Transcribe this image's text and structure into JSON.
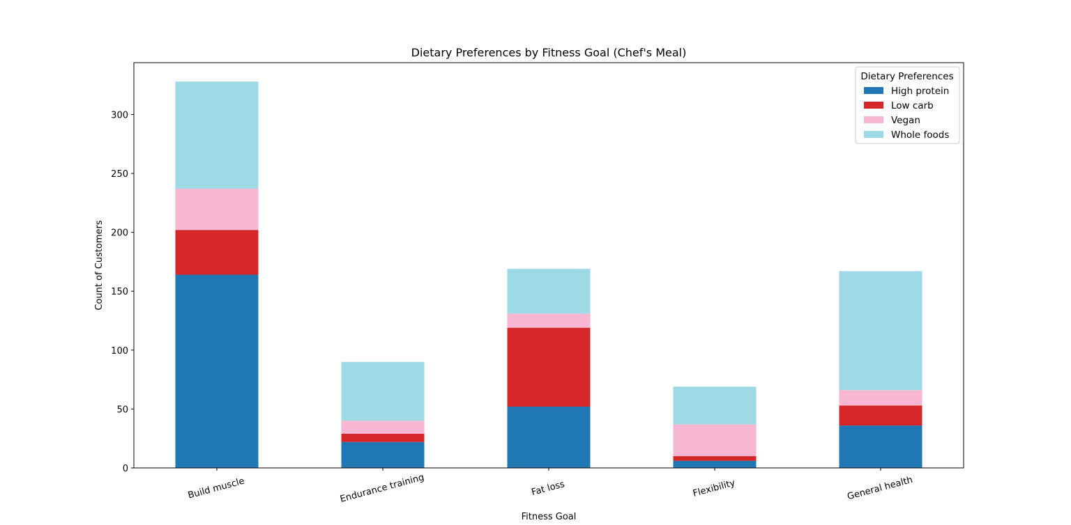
{
  "chart_data": {
    "type": "bar",
    "stacked": true,
    "title": "Dietary Preferences by Fitness Goal (Chef's Meal)",
    "xlabel": "Fitness Goal",
    "ylabel": "Count of Customers",
    "categories": [
      "Build muscle",
      "Endurance training",
      "Fat loss",
      "Flexibility",
      "General health"
    ],
    "series": [
      {
        "name": "High protein",
        "color": "#1f77b4",
        "values": [
          164,
          22,
          52,
          6,
          36
        ]
      },
      {
        "name": "Low carb",
        "color": "#d62728",
        "values": [
          38,
          7,
          67,
          4,
          17
        ]
      },
      {
        "name": "Vegan",
        "color": "#f7b6d2",
        "values": [
          35,
          11,
          12,
          27,
          13
        ]
      },
      {
        "name": "Whole foods",
        "color": "#9edae5",
        "values": [
          91,
          50,
          38,
          32,
          101
        ]
      }
    ],
    "ylim": [
      0,
      344
    ],
    "yticks": [
      0,
      50,
      100,
      150,
      200,
      250,
      300
    ],
    "grid": false,
    "legend": {
      "title": "Dietary Preferences",
      "placement": "top-right"
    },
    "xtick_rotation": "rotated"
  }
}
